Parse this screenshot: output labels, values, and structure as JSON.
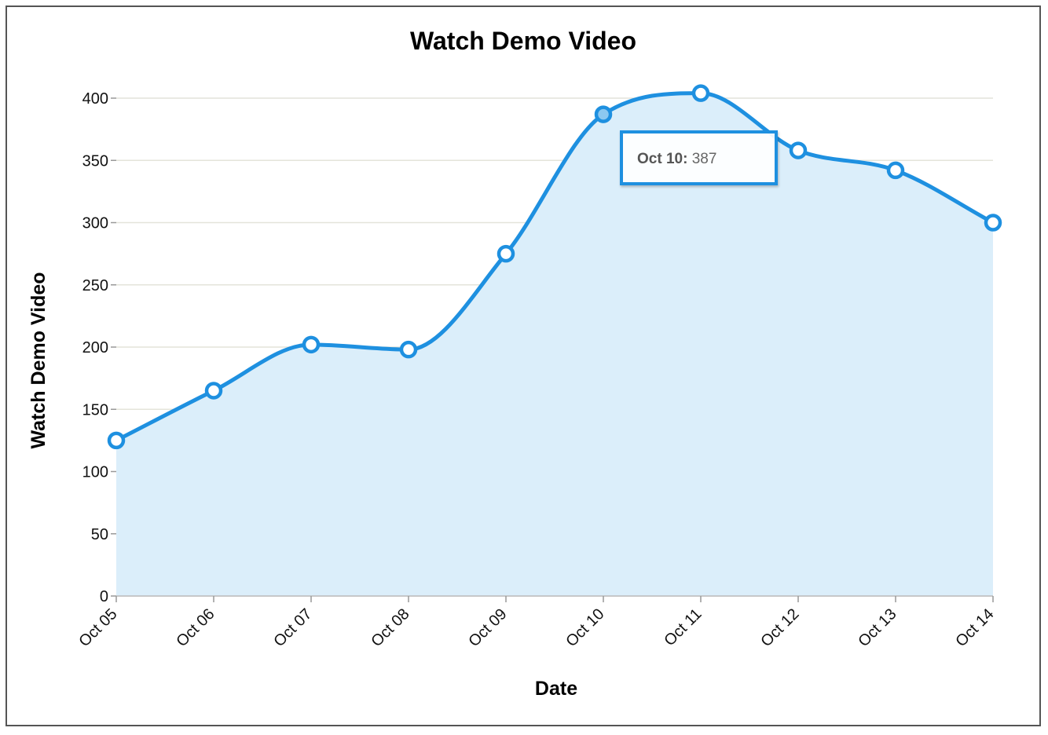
{
  "chart_data": {
    "type": "area",
    "title": "Watch Demo Video",
    "xlabel": "Date",
    "ylabel": "Watch Demo Video",
    "categories": [
      "Oct 05",
      "Oct 06",
      "Oct 07",
      "Oct 08",
      "Oct 09",
      "Oct 10",
      "Oct 11",
      "Oct 12",
      "Oct 13",
      "Oct 14"
    ],
    "values": [
      125,
      165,
      202,
      198,
      275,
      387,
      404,
      358,
      342,
      300
    ],
    "ylim": [
      0,
      400
    ],
    "yticks": [
      0,
      50,
      100,
      150,
      200,
      250,
      300,
      350,
      400
    ],
    "grid": true,
    "smooth": true,
    "colors": {
      "line": "#1e90e0",
      "fill": "#dbeefa",
      "highlight": "#8cc8f0"
    },
    "tooltip": {
      "label": "Oct 10:",
      "value": "387",
      "index": 5
    }
  }
}
